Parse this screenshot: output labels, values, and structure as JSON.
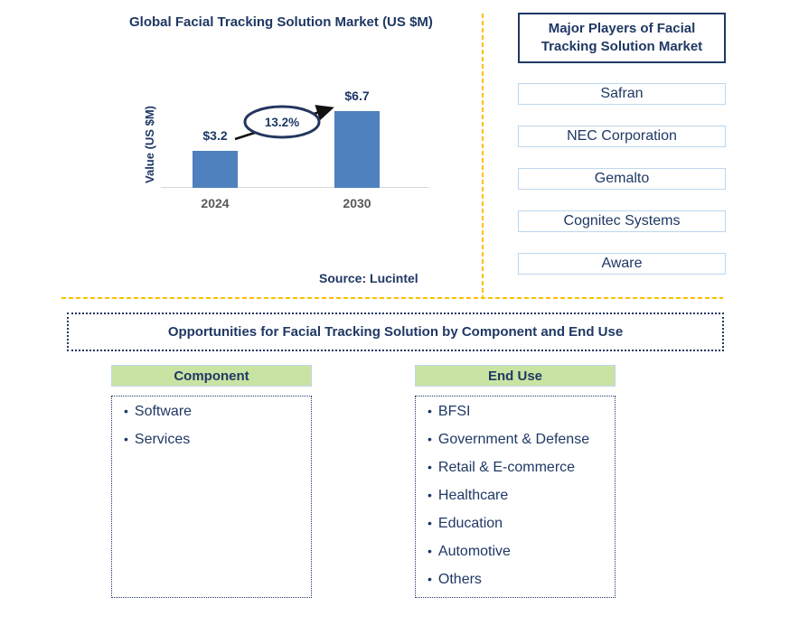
{
  "chart": {
    "title": "Global Facial Tracking Solution Market (US $M)",
    "ylabel": "Value (US $M)",
    "growth_label": "13.2%",
    "source": "Source: Lucintel"
  },
  "chart_data": {
    "type": "bar",
    "title": "Global Facial Tracking Solution Market (US $M)",
    "categories": [
      "2024",
      "2030"
    ],
    "values": [
      3.2,
      6.7
    ],
    "bar_labels": [
      "$3.2",
      "$6.7"
    ],
    "xlabel": "",
    "ylabel": "Value (US $M)",
    "ylim": [
      0,
      7.5
    ],
    "grid": false,
    "legend_position": "none",
    "annotation": "13.2% growth arrow from 2024 bar to 2030 bar",
    "bar_color": "#4E81BD"
  },
  "players": {
    "title_line1": "Major Players of Facial",
    "title_line2": "Tracking Solution Market",
    "items": [
      "Safran",
      "NEC Corporation",
      "Gemalto",
      "Cognitec Systems",
      "Aware"
    ]
  },
  "opportunities": {
    "title": "Opportunities for Facial Tracking Solution by Component and End Use",
    "columns": [
      {
        "header": "Component",
        "items": [
          "Software",
          "Services"
        ]
      },
      {
        "header": "End Use",
        "items": [
          "BFSI",
          "Government & Defense",
          "Retail & E-commerce",
          "Healthcare",
          "Education",
          "Automotive",
          "Others"
        ]
      }
    ]
  },
  "colors": {
    "navy": "#1F3864",
    "bar_blue": "#4E81BD",
    "gold": "#FFC000",
    "green_header": "#C9E3A3",
    "light_blue_border": "#BDD7EE",
    "axis_gray": "#D6D6D6",
    "category_gray": "#595959",
    "arrow_black": "#111111"
  },
  "bullet_glyph": "•"
}
